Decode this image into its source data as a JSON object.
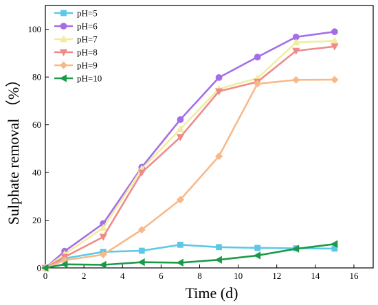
{
  "chart_data": {
    "type": "line",
    "title": "",
    "xlabel": "Time (d)",
    "ylabel": "Sulphate removal （%）",
    "xlim": [
      0,
      17
    ],
    "ylim": [
      0,
      110
    ],
    "xticks": [
      0,
      2,
      4,
      6,
      8,
      10,
      12,
      14,
      16
    ],
    "yticks": [
      0,
      20,
      40,
      60,
      80,
      100
    ],
    "grid": false,
    "legend_position": "top-left",
    "series": [
      {
        "name": "pH=5",
        "color": "#5bc8e8",
        "marker": "square",
        "points": [
          [
            0,
            0
          ],
          [
            1,
            4
          ],
          [
            3,
            6.7
          ],
          [
            5,
            7.2
          ],
          [
            7,
            9.7
          ],
          [
            9,
            8.7
          ],
          [
            11,
            8.4
          ],
          [
            13,
            8.2
          ],
          [
            15,
            8.1
          ]
        ]
      },
      {
        "name": "pH=6",
        "color": "#a46ee8",
        "marker": "circle",
        "points": [
          [
            0,
            0
          ],
          [
            1,
            7
          ],
          [
            3,
            18.6
          ],
          [
            5,
            42.2
          ],
          [
            7,
            62.2
          ],
          [
            9,
            79.8
          ],
          [
            11,
            88.4
          ],
          [
            13,
            96.8
          ],
          [
            15,
            99
          ]
        ]
      },
      {
        "name": "pH=7",
        "color": "#f0ee9e",
        "marker": "triangle-up",
        "points": [
          [
            0,
            0
          ],
          [
            1,
            5.8
          ],
          [
            3,
            16.8
          ],
          [
            5,
            41.5
          ],
          [
            7,
            58.2
          ],
          [
            9,
            75
          ],
          [
            11,
            79.5
          ],
          [
            13,
            94.5
          ],
          [
            15,
            95.2
          ]
        ]
      },
      {
        "name": "pH=8",
        "color": "#f08a8a",
        "marker": "triangle-down",
        "points": [
          [
            0,
            0
          ],
          [
            1,
            4.6
          ],
          [
            3,
            13
          ],
          [
            5,
            40
          ],
          [
            7,
            54.8
          ],
          [
            9,
            74
          ],
          [
            11,
            78
          ],
          [
            13,
            91
          ],
          [
            15,
            92.8
          ]
        ]
      },
      {
        "name": "pH=9",
        "color": "#f7b98a",
        "marker": "diamond",
        "points": [
          [
            0,
            0
          ],
          [
            1,
            3.2
          ],
          [
            3,
            5.6
          ],
          [
            5,
            16
          ],
          [
            7,
            28.6
          ],
          [
            9,
            46.8
          ],
          [
            11,
            77.2
          ],
          [
            13,
            78.8
          ],
          [
            15,
            78.9
          ]
        ]
      },
      {
        "name": "pH=10",
        "color": "#1a9a48",
        "marker": "triangle-left",
        "points": [
          [
            0,
            0
          ],
          [
            1,
            1.5
          ],
          [
            3,
            1.3
          ],
          [
            5,
            2.4
          ],
          [
            7,
            2.2
          ],
          [
            9,
            3.4
          ],
          [
            11,
            5.2
          ],
          [
            13,
            8
          ],
          [
            15,
            10
          ]
        ]
      }
    ]
  }
}
